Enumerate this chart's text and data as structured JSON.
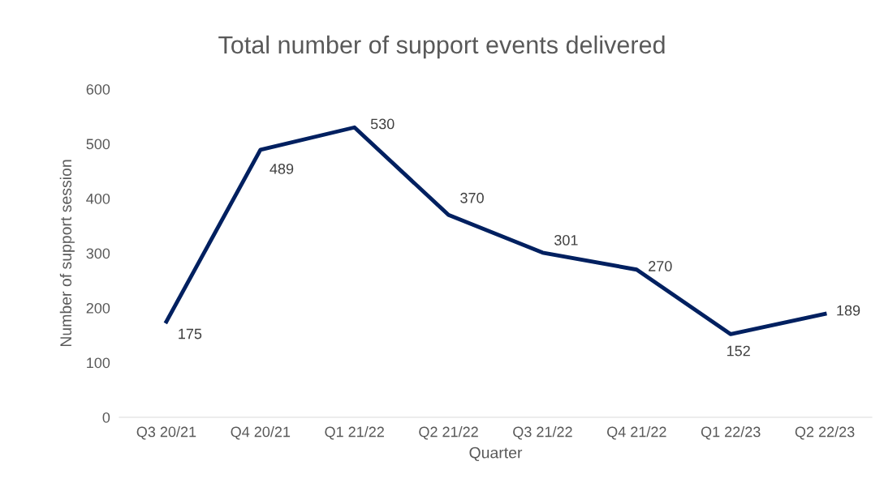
{
  "chart_data": {
    "type": "line",
    "title": "Total number of support events delivered",
    "xlabel": "Quarter",
    "ylabel": "Number of support session",
    "categories": [
      "Q3 20/21",
      "Q4 20/21",
      "Q1 21/22",
      "Q2 21/22",
      "Q3 21/22",
      "Q4 21/22",
      "Q1 22/23",
      "Q2 22/23"
    ],
    "series": [
      {
        "color": "#002060",
        "values": [
          175,
          489,
          530,
          370,
          301,
          270,
          152,
          189
        ]
      }
    ],
    "ylim": [
      0,
      600
    ],
    "yticks": [
      0,
      100,
      200,
      300,
      400,
      500,
      600
    ],
    "grid": false,
    "data_labels": true,
    "legend": false,
    "marker": "none",
    "line_style": "solid"
  }
}
